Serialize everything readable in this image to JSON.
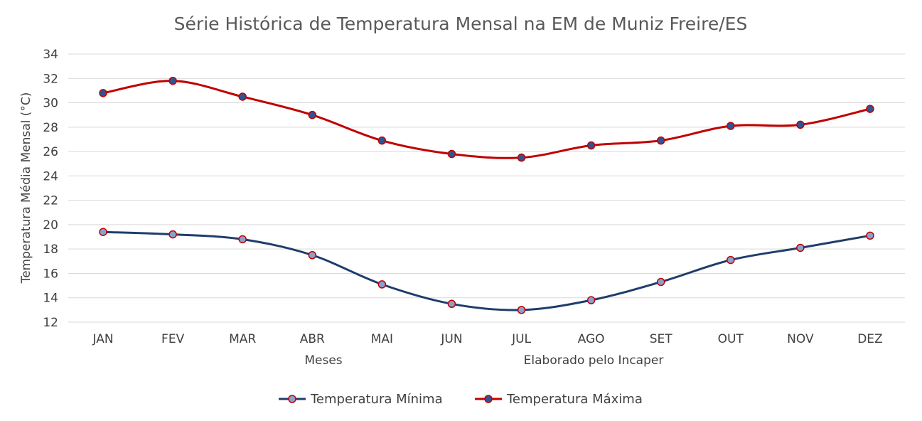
{
  "chart_data": {
    "type": "line",
    "title": "Série Histórica de Temperatura Mensal na EM de Muniz Freire/ES",
    "xlabel": "Meses",
    "annotation": "Elaborado pelo Incaper",
    "ylabel": "Temperatura Média Mensal (°C)",
    "categories": [
      "JAN",
      "FEV",
      "MAR",
      "ABR",
      "MAI",
      "JUN",
      "JUL",
      "AGO",
      "SET",
      "OUT",
      "NOV",
      "DEZ"
    ],
    "ylim": [
      12,
      34
    ],
    "yticks": [
      12,
      14,
      16,
      18,
      20,
      22,
      24,
      26,
      28,
      30,
      32,
      34
    ],
    "grid": true,
    "legend_position": "bottom",
    "series": [
      {
        "name": "Temperatura Mínima",
        "values": [
          19.4,
          19.2,
          18.8,
          17.5,
          15.1,
          13.5,
          13.0,
          13.8,
          15.3,
          17.1,
          18.1,
          19.1
        ],
        "line_color": "#1f3d6b",
        "marker_fill": "#8aa0cf",
        "marker_stroke": "#c00000"
      },
      {
        "name": "Temperatura Máxima",
        "values": [
          30.8,
          31.8,
          30.5,
          29.0,
          26.9,
          25.8,
          25.5,
          26.5,
          26.9,
          28.1,
          28.2,
          29.5
        ],
        "line_color": "#c00000",
        "marker_fill": "#2e5496",
        "marker_stroke": "#c00000"
      }
    ]
  }
}
